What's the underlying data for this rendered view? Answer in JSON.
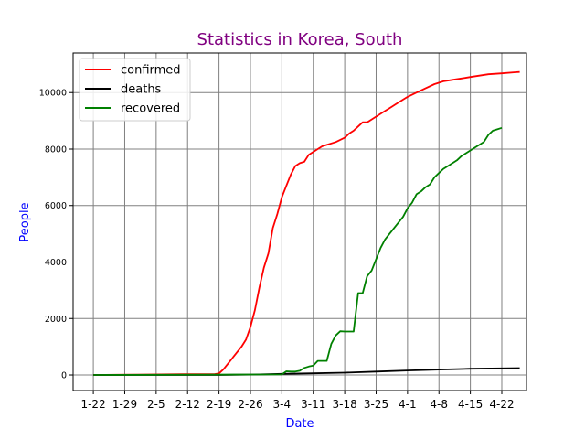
{
  "chart_data": {
    "type": "line",
    "title": "Statistics in Korea, South",
    "xlabel": "Date",
    "ylabel": "People",
    "title_color": "#800080",
    "label_color": "#0000ff",
    "grid": true,
    "grid_color": "#808080",
    "legend_position": "top-left",
    "ylim": [
      -550,
      11400
    ],
    "yticks": [
      0,
      2000,
      4000,
      6000,
      8000,
      10000
    ],
    "xticks": [
      "1-22",
      "1-29",
      "2-5",
      "2-12",
      "2-19",
      "2-26",
      "3-4",
      "3-11",
      "3-18",
      "3-25",
      "4-1",
      "4-8",
      "4-15",
      "4-22"
    ],
    "xtick_days": [
      0,
      7,
      14,
      21,
      28,
      35,
      42,
      49,
      56,
      63,
      70,
      77,
      84,
      91
    ],
    "xlim": [
      -4.5,
      96.5
    ],
    "series": [
      {
        "name": "confirmed",
        "color": "#ff0000",
        "points": [
          [
            0,
            1
          ],
          [
            10,
            15
          ],
          [
            20,
            27
          ],
          [
            27,
            30
          ],
          [
            28,
            56
          ],
          [
            29,
            200
          ],
          [
            30,
            400
          ],
          [
            31,
            600
          ],
          [
            32,
            800
          ],
          [
            33,
            1000
          ],
          [
            34,
            1250
          ],
          [
            35,
            1700
          ],
          [
            36,
            2300
          ],
          [
            37,
            3100
          ],
          [
            38,
            3800
          ],
          [
            39,
            4300
          ],
          [
            40,
            5200
          ],
          [
            41,
            5700
          ],
          [
            42,
            6300
          ],
          [
            43,
            6700
          ],
          [
            44,
            7100
          ],
          [
            45,
            7400
          ],
          [
            46,
            7500
          ],
          [
            47,
            7550
          ],
          [
            48,
            7800
          ],
          [
            49,
            7900
          ],
          [
            50,
            8000
          ],
          [
            51,
            8100
          ],
          [
            52,
            8150
          ],
          [
            54,
            8250
          ],
          [
            56,
            8400
          ],
          [
            57,
            8550
          ],
          [
            58,
            8650
          ],
          [
            59,
            8800
          ],
          [
            60,
            8950
          ],
          [
            61,
            8950
          ],
          [
            62,
            9050
          ],
          [
            63,
            9150
          ],
          [
            64,
            9250
          ],
          [
            65,
            9350
          ],
          [
            66,
            9450
          ],
          [
            67,
            9550
          ],
          [
            68,
            9650
          ],
          [
            69,
            9750
          ],
          [
            70,
            9850
          ],
          [
            72,
            10000
          ],
          [
            74,
            10150
          ],
          [
            76,
            10300
          ],
          [
            78,
            10400
          ],
          [
            80,
            10450
          ],
          [
            82,
            10500
          ],
          [
            84,
            10550
          ],
          [
            86,
            10600
          ],
          [
            88,
            10650
          ],
          [
            91,
            10680
          ],
          [
            94,
            10720
          ],
          [
            95,
            10730
          ]
        ]
      },
      {
        "name": "deaths",
        "color": "#000000",
        "points": [
          [
            0,
            0
          ],
          [
            28,
            0
          ],
          [
            35,
            15
          ],
          [
            42,
            40
          ],
          [
            49,
            60
          ],
          [
            56,
            80
          ],
          [
            63,
            120
          ],
          [
            70,
            160
          ],
          [
            77,
            190
          ],
          [
            84,
            220
          ],
          [
            91,
            235
          ],
          [
            95,
            245
          ]
        ]
      },
      {
        "name": "recovered",
        "color": "#008000",
        "points": [
          [
            0,
            0
          ],
          [
            42,
            20
          ],
          [
            43,
            130
          ],
          [
            44,
            120
          ],
          [
            45,
            120
          ],
          [
            46,
            150
          ],
          [
            47,
            250
          ],
          [
            48,
            300
          ],
          [
            49,
            330
          ],
          [
            50,
            500
          ],
          [
            51,
            500
          ],
          [
            52,
            500
          ],
          [
            53,
            1100
          ],
          [
            54,
            1400
          ],
          [
            55,
            1550
          ],
          [
            56,
            1540
          ],
          [
            57,
            1540
          ],
          [
            58,
            1540
          ],
          [
            59,
            2900
          ],
          [
            60,
            2900
          ],
          [
            61,
            3500
          ],
          [
            62,
            3700
          ],
          [
            63,
            4100
          ],
          [
            64,
            4500
          ],
          [
            65,
            4800
          ],
          [
            66,
            5000
          ],
          [
            67,
            5200
          ],
          [
            68,
            5400
          ],
          [
            69,
            5600
          ],
          [
            70,
            5900
          ],
          [
            71,
            6100
          ],
          [
            72,
            6400
          ],
          [
            73,
            6500
          ],
          [
            74,
            6650
          ],
          [
            75,
            6750
          ],
          [
            76,
            7000
          ],
          [
            77,
            7150
          ],
          [
            78,
            7300
          ],
          [
            79,
            7400
          ],
          [
            80,
            7500
          ],
          [
            81,
            7600
          ],
          [
            82,
            7750
          ],
          [
            83,
            7850
          ],
          [
            84,
            7950
          ],
          [
            85,
            8050
          ],
          [
            86,
            8150
          ],
          [
            87,
            8250
          ],
          [
            88,
            8500
          ],
          [
            89,
            8650
          ],
          [
            90,
            8700
          ],
          [
            91,
            8750
          ]
        ]
      }
    ]
  }
}
